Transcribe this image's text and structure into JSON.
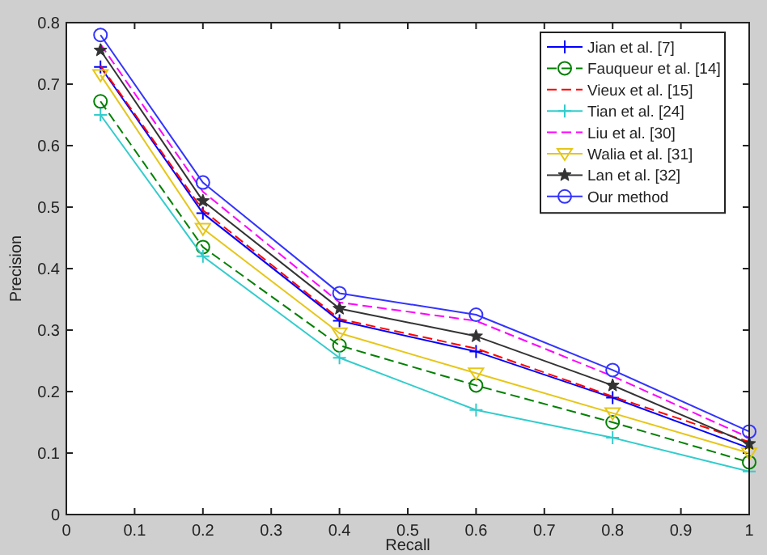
{
  "chart_data": {
    "type": "line",
    "xlabel": "Recall",
    "ylabel": "Precision",
    "x": [
      0.05,
      0.2,
      0.4,
      0.6,
      0.8,
      1
    ],
    "xlim": [
      0,
      1
    ],
    "xticks": [
      0,
      0.1,
      0.2,
      0.3,
      0.4,
      0.5,
      0.6,
      0.7,
      0.8,
      0.9,
      1
    ],
    "ylim": [
      0,
      0.8
    ],
    "yticks": [
      0,
      0.1,
      0.2,
      0.3,
      0.4,
      0.5,
      0.6,
      0.7,
      0.8
    ],
    "grid": false,
    "legend": "top right",
    "series": [
      {
        "name": "Jian et al. [7]",
        "color": "#0000ff",
        "marker": "cross",
        "line_style": "solid",
        "values": [
          0.728,
          0.49,
          0.315,
          0.265,
          0.19,
          0.108
        ]
      },
      {
        "name": "Fauqueur et al. [14]",
        "color": "#008000",
        "marker": "circle",
        "line_style": "dashed",
        "values": [
          0.672,
          0.435,
          0.275,
          0.21,
          0.15,
          0.085
        ]
      },
      {
        "name": "Vieux et al. [15]",
        "color": "#ff0000",
        "marker": "none",
        "line_style": "dashed",
        "values": [
          0.73,
          0.495,
          0.318,
          0.27,
          0.192,
          0.118
        ]
      },
      {
        "name": "Tian et al. [24]",
        "color": "#33cccc",
        "marker": "cross",
        "line_style": "solid",
        "values": [
          0.65,
          0.42,
          0.255,
          0.17,
          0.125,
          0.07
        ]
      },
      {
        "name": "Liu et al. [30]",
        "color": "#ff00ff",
        "marker": "none",
        "line_style": "dashed",
        "values": [
          0.765,
          0.525,
          0.345,
          0.315,
          0.225,
          0.125
        ]
      },
      {
        "name": "Walia et al. [31]",
        "color": "#e6c619",
        "marker": "triangle",
        "line_style": "solid",
        "values": [
          0.715,
          0.465,
          0.295,
          0.23,
          0.165,
          0.1
        ]
      },
      {
        "name": "Lan et al. [32]",
        "color": "#333333",
        "marker": "star",
        "line_style": "solid",
        "values": [
          0.755,
          0.51,
          0.335,
          0.29,
          0.21,
          0.115
        ]
      },
      {
        "name": "Our method",
        "color": "#3333ff",
        "marker": "circle",
        "line_style": "solid",
        "values": [
          0.78,
          0.54,
          0.36,
          0.325,
          0.235,
          0.135
        ]
      }
    ]
  }
}
